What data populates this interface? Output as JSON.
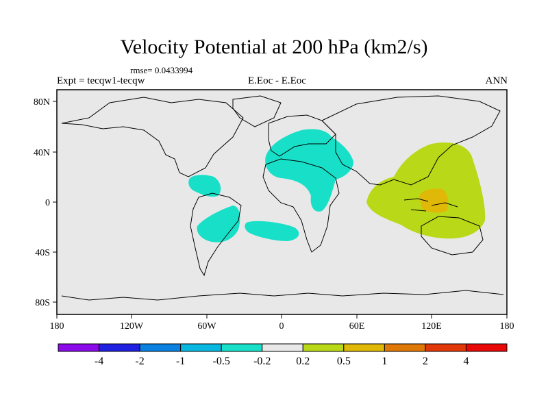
{
  "title": "Velocity Potential at 200 hPa (km2/s)",
  "rmse": "rmse= 0.0433994",
  "left_label": "Expt = tecqw1-tecqw",
  "center_label": "E.Eoc - E.Eoc",
  "right_label": "ANN",
  "lat_labels": [
    "80N",
    "40N",
    "0",
    "40S",
    "80S"
  ],
  "lon_labels": [
    "180",
    "120W",
    "60W",
    "0",
    "60E",
    "120E",
    "180"
  ],
  "colorbar": {
    "labels": [
      "-4",
      "-2",
      "-1",
      "-0.5",
      "-0.2",
      "0.2",
      "0.5",
      "1",
      "2",
      "4"
    ],
    "colors": [
      "#8a0ae8",
      "#2020e0",
      "#0a80e0",
      "#08b8e0",
      "#18e0c8",
      "#e8e8e8",
      "#b8d818",
      "#e0b808",
      "#e07808",
      "#e03808",
      "#e80808"
    ]
  },
  "colors": {
    "background": "#e8e8e8",
    "positive_low": "#b8d818",
    "positive_mid": "#e0b808",
    "negative_low": "#18e0c8"
  }
}
